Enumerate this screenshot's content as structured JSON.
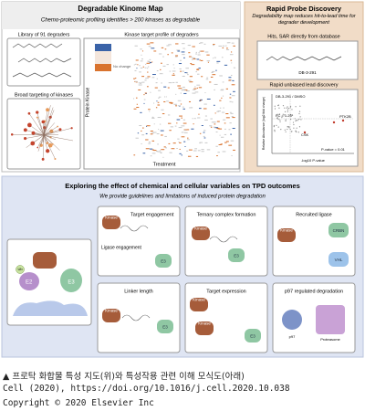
{
  "top": {
    "left_panel": {
      "title": "Degradable Kinome Map",
      "subtitle": "Chemo-proteomic profiling identifies > 200 kinases as degradable",
      "library_label": "Library of 91 degraders",
      "broad_label": "Broad targeting of kinases",
      "heatmap_title": "Kinase target profile of degraders",
      "heatmap_y": "Protein Kinase",
      "heatmap_x": "Treatment",
      "heatmap_legend": "No change"
    },
    "right_panel": {
      "title": "Rapid Probe Discovery",
      "subtitle": "Degradability map reduces hit-to-lead time for degrader development",
      "hits_label": "Hits, SAR directly from database",
      "compound": "DB-3-291",
      "lead_label": "Rapid unbiased lead discovery",
      "plot_legend": "DB-3-291 / DMSO",
      "fc": "FC = 1.25",
      "pvalue": "P-value = 0.01",
      "x_axis": "-log10 P-value",
      "y_axis": "Relative Abundance (log2 fold change)",
      "points": [
        "PTK2B",
        "CSK"
      ]
    }
  },
  "bottom": {
    "title": "Exploring the effect of chemical and cellular variables on TPD outcomes",
    "subtitle": "We provide guidelines and limitations of induced protein degradation",
    "cell": {
      "kinase": "Kinase",
      "e2": "E2",
      "e3": "E3",
      "ub": "Ub"
    },
    "cards": {
      "engagement": {
        "title": "Target engagement",
        "subtitle": "Ligase engagement",
        "kinase": "Kinase",
        "e3": "E3"
      },
      "ternary": {
        "title": "Ternary complex formation",
        "kinase": "Kinase",
        "e3": "E3"
      },
      "ligase": {
        "title": "Recruited ligase",
        "kinase": "Kinase",
        "crbn": "CRBN",
        "vhl": "VHL"
      },
      "linker": {
        "title": "Linker length",
        "kinase": "Kinase",
        "e3": "E3"
      },
      "expression": {
        "title": "Target expression",
        "kinase1": "Kinase",
        "kinase2": "Kinase",
        "e3": "E3"
      },
      "p97": {
        "title": "p97 regulated degradation",
        "p97": "p97",
        "proteasome": "Proteasome"
      }
    }
  },
  "caption": [
    "▲ 프로탁 화합물 특성 지도(위)와 특성작용 관련 이해 모식도(아래)",
    "Cell (2020), https://doi.org/10.1016/j.cell.2020.10.038",
    "Copyright © 2020 Elsevier Inc"
  ]
}
